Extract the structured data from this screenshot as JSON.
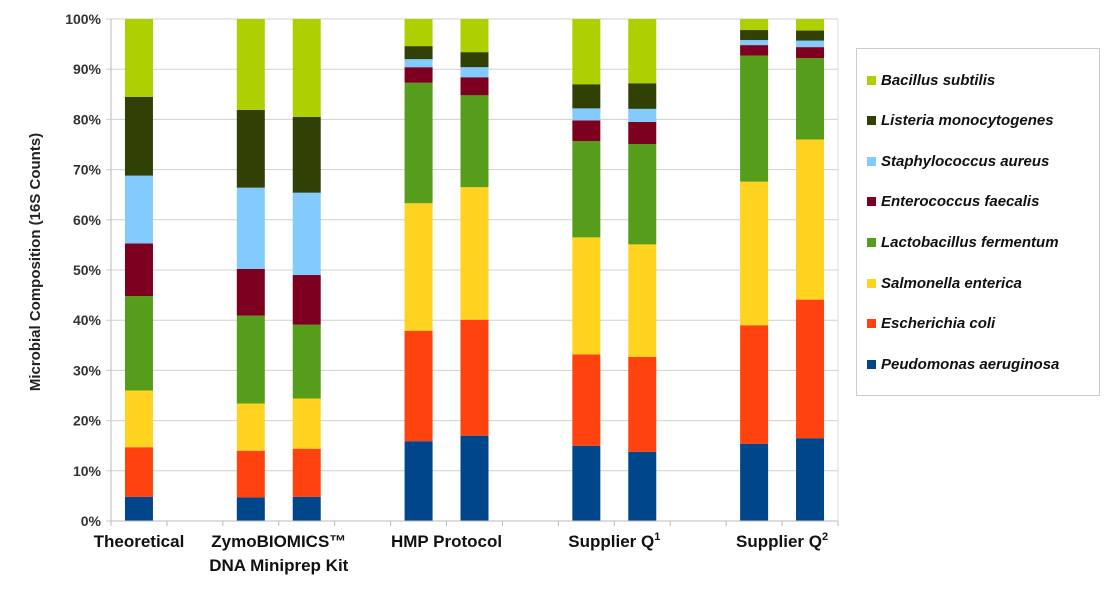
{
  "chart_data": {
    "type": "bar",
    "stacked": true,
    "ylabel": "Microbial Composition (16S Counts)",
    "ylim": [
      0,
      100
    ],
    "yticks": [
      "0%",
      "10%",
      "20%",
      "30%",
      "40%",
      "50%",
      "60%",
      "70%",
      "80%",
      "90%",
      "100%"
    ],
    "grid": true,
    "legend_position": "right",
    "groups": [
      {
        "label": "Theoretical",
        "bar_count": 1
      },
      {
        "label": "ZymoBIOMICS™",
        "label_line2": "DNA Miniprep Kit",
        "bar_count": 2
      },
      {
        "label": "HMP Protocol",
        "bar_count": 2
      },
      {
        "label": "Supplier Q",
        "sup": "1",
        "bar_count": 2
      },
      {
        "label": "Supplier Q",
        "sup": "2",
        "bar_count": 2
      }
    ],
    "series": [
      {
        "name": "Peudomonas aeruginosa",
        "color": "#00468b",
        "values": [
          4.8,
          4.7,
          4.8,
          15.9,
          17.0,
          15.0,
          13.8,
          15.4,
          16.5
        ]
      },
      {
        "name": "Escherichia coli",
        "color": "#ff420e",
        "values": [
          9.9,
          9.3,
          9.6,
          22.0,
          23.1,
          18.2,
          18.9,
          23.6,
          27.6
        ]
      },
      {
        "name": "Salmonella enterica",
        "color": "#ffd320",
        "values": [
          11.3,
          9.4,
          10.0,
          25.4,
          26.4,
          23.3,
          22.4,
          28.6,
          31.9
        ]
      },
      {
        "name": "Lactobacillus fermentum",
        "color": "#579d1c",
        "values": [
          18.8,
          17.5,
          14.7,
          24.0,
          18.3,
          19.2,
          20.0,
          25.1,
          16.2
        ]
      },
      {
        "name": "Enterococcus faecalis",
        "color": "#7e0021",
        "values": [
          10.5,
          9.3,
          9.9,
          3.1,
          3.6,
          4.1,
          4.4,
          2.1,
          2.2
        ]
      },
      {
        "name": "Staphylococcus aureus",
        "color": "#83caff",
        "values": [
          13.5,
          16.2,
          16.4,
          1.6,
          2.0,
          2.4,
          2.6,
          1.0,
          1.3
        ]
      },
      {
        "name": "Listeria monocytogenes",
        "color": "#314004",
        "values": [
          15.7,
          15.5,
          15.1,
          2.6,
          3.0,
          4.8,
          5.1,
          2.0,
          2.0
        ]
      },
      {
        "name": "Bacillus subtilis",
        "color": "#aecf00",
        "values": [
          15.5,
          18.1,
          19.5,
          5.4,
          6.6,
          13.0,
          12.8,
          2.2,
          2.3
        ]
      }
    ]
  }
}
